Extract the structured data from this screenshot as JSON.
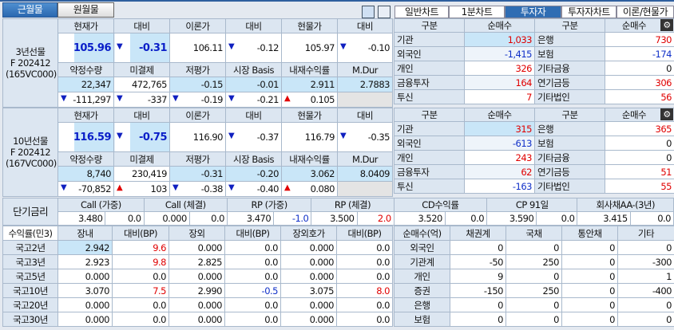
{
  "top_tabs": [
    "근월물",
    "원월물"
  ],
  "right_tabs": [
    "일반차트",
    "1분차트",
    "투자자",
    "투자자차트",
    "이론/현물가"
  ],
  "right_tab_selected": "투자자",
  "futures": [
    {
      "label": [
        "3년선물",
        "F 202412",
        "(165VC000)"
      ],
      "h1": [
        "현재가",
        "대비",
        "이론가",
        "대비",
        "현물가",
        "대비"
      ],
      "v1": {
        "price": "105.96",
        "chg": "-0.31",
        "theory": "106.11",
        "theory_chg": "-0.12",
        "spot": "105.97",
        "spot_chg": "-0.10"
      },
      "h2": [
        "약정수량",
        "미결제",
        "저평가",
        "시장 Basis",
        "내재수익률",
        "M.Dur"
      ],
      "v2": [
        "22,347",
        "472,765",
        "-0.15",
        "-0.01",
        "2.911",
        "2.7883"
      ],
      "v3": [
        {
          "d": "down",
          "v": "-111,297"
        },
        {
          "d": "down",
          "v": "-337"
        },
        {
          "d": "down",
          "v": "-0.19"
        },
        {
          "d": "down",
          "v": "-0.21"
        },
        {
          "d": "up",
          "v": "0.105"
        }
      ]
    },
    {
      "label": [
        "10년선물",
        "F 202412",
        "(167VC000)"
      ],
      "h1": [
        "현재가",
        "대비",
        "이론가",
        "대비",
        "현물가",
        "대비"
      ],
      "v1": {
        "price": "116.59",
        "chg": "-0.75",
        "theory": "116.90",
        "theory_chg": "-0.37",
        "spot": "116.79",
        "spot_chg": "-0.35"
      },
      "h2": [
        "약정수량",
        "미결제",
        "저평가",
        "시장 Basis",
        "내재수익률",
        "M.Dur"
      ],
      "v2": [
        "8,740",
        "230,419",
        "-0.31",
        "-0.20",
        "3.062",
        "8.0409"
      ],
      "v3": [
        {
          "d": "down",
          "v": "-70,852"
        },
        {
          "d": "up",
          "v": "103"
        },
        {
          "d": "down",
          "v": "-0.38"
        },
        {
          "d": "down",
          "v": "-0.40"
        },
        {
          "d": "up",
          "v": "0.080"
        }
      ]
    }
  ],
  "investors": [
    {
      "headers": [
        "구분",
        "순매수",
        "구분",
        "순매수"
      ],
      "rows": [
        [
          "기관",
          "1,033",
          "은행",
          "730"
        ],
        [
          "외국인",
          "-1,415",
          "보험",
          "-174"
        ],
        [
          "개인",
          "326",
          "기타금융",
          "0"
        ],
        [
          "금융투자",
          "164",
          "연기금등",
          "306"
        ],
        [
          "투신",
          "7",
          "기타법인",
          "56"
        ]
      ]
    },
    {
      "headers": [
        "구분",
        "순매수",
        "구분",
        "순매수"
      ],
      "rows": [
        [
          "기관",
          "315",
          "은행",
          "365"
        ],
        [
          "외국인",
          "-613",
          "보험",
          "0"
        ],
        [
          "개인",
          "243",
          "기타금융",
          "0"
        ],
        [
          "금융투자",
          "62",
          "연기금등",
          "51"
        ],
        [
          "투신",
          "-163",
          "기타법인",
          "55"
        ]
      ]
    }
  ],
  "short_rates": {
    "label": "단기금리",
    "items": [
      {
        "name": "Call (가중)",
        "rate": "3.480",
        "chg": "0.0"
      },
      {
        "name": "Call (체결)",
        "rate": "0.000",
        "chg": "0.0"
      },
      {
        "name": "RP (가중)",
        "rate": "3.470",
        "chg": "-1.0"
      },
      {
        "name": "RP (체결)",
        "rate": "3.500",
        "chg": "2.0"
      },
      {
        "name": "CD수익률",
        "rate": "3.520",
        "chg": "0.0"
      },
      {
        "name": "CP 91일",
        "rate": "3.590",
        "chg": "0.0"
      },
      {
        "name": "회사채AA-(3년)",
        "rate": "3.415",
        "chg": "0.0"
      }
    ]
  },
  "yields": {
    "headers": [
      "수익률(민3)",
      "장내",
      "대비(BP)",
      "장외",
      "대비(BP)",
      "장외호가",
      "대비(BP)"
    ],
    "rows": [
      [
        "국고2년",
        "2.942",
        "9.6",
        "0.000",
        "0.0",
        "0.000",
        "0.0"
      ],
      [
        "국고3년",
        "2.923",
        "9.8",
        "2.825",
        "0.0",
        "0.000",
        "0.0"
      ],
      [
        "국고5년",
        "0.000",
        "0.0",
        "0.000",
        "0.0",
        "0.000",
        "0.0"
      ],
      [
        "국고10년",
        "3.070",
        "7.5",
        "2.990",
        "-0.5",
        "3.075",
        "8.0"
      ],
      [
        "국고20년",
        "0.000",
        "0.0",
        "0.000",
        "0.0",
        "0.000",
        "0.0"
      ],
      [
        "국고30년",
        "0.000",
        "0.0",
        "0.000",
        "0.0",
        "0.000",
        "0.0"
      ]
    ]
  },
  "net_buy": {
    "headers": [
      "순매수(억)",
      "채권계",
      "국채",
      "통안채",
      "기타"
    ],
    "rows": [
      [
        "외국인",
        "0",
        "0",
        "0",
        "0"
      ],
      [
        "기관계",
        "-50",
        "250",
        "0",
        "-300"
      ],
      [
        "개인",
        "9",
        "0",
        "0",
        "1"
      ],
      [
        "증권",
        "-150",
        "250",
        "0",
        "-400"
      ],
      [
        "은행",
        "0",
        "0",
        "0",
        "0"
      ],
      [
        "보험",
        "0",
        "0",
        "0",
        "0"
      ]
    ]
  }
}
